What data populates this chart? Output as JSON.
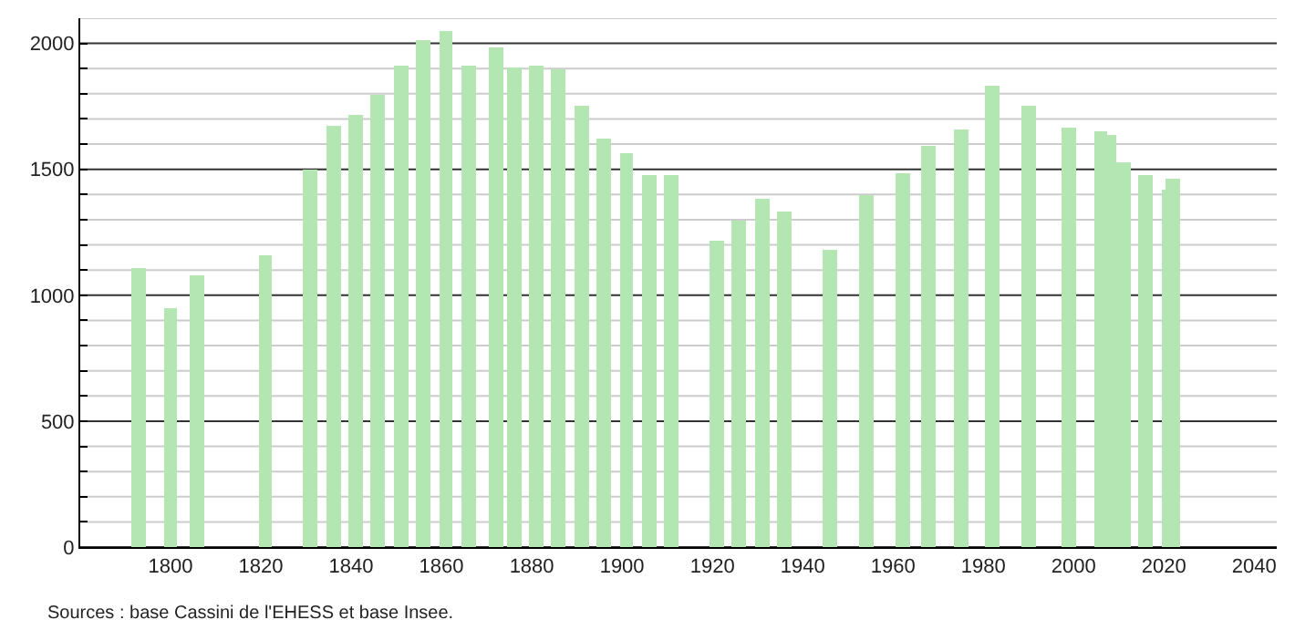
{
  "chart_data": {
    "type": "bar",
    "x": [
      1793,
      1800,
      1806,
      1821,
      1831,
      1836,
      1841,
      1846,
      1851,
      1856,
      1861,
      1866,
      1872,
      1876,
      1881,
      1886,
      1891,
      1896,
      1901,
      1906,
      1911,
      1921,
      1926,
      1931,
      1936,
      1946,
      1954,
      1962,
      1968,
      1975,
      1982,
      1990,
      1999,
      2006,
      2008,
      2011,
      2016,
      2021,
      2022
    ],
    "values": [
      1110,
      950,
      1080,
      1160,
      1500,
      1675,
      1715,
      1795,
      1910,
      2015,
      2050,
      1915,
      1985,
      1905,
      1910,
      1895,
      1755,
      1625,
      1565,
      1480,
      1480,
      1220,
      1295,
      1380,
      1330,
      1180,
      1400,
      1485,
      1595,
      1655,
      1835,
      1755,
      1665,
      1650,
      1640,
      1530,
      1480,
      1420,
      1460
    ],
    "color": "#b3e6b3",
    "xlim": [
      1780,
      2045
    ],
    "xticks": [
      1800,
      1820,
      1840,
      1860,
      1880,
      1900,
      1920,
      1940,
      1960,
      1980,
      2000,
      2020,
      2040
    ],
    "ylim": [
      0,
      2100
    ],
    "yticks": [
      0,
      {
        "value": 100,
        "label": null
      },
      {
        "value": 200,
        "label": null
      },
      {
        "value": 300,
        "label": null
      },
      {
        "value": 400,
        "label": null
      },
      500,
      {
        "value": 600,
        "label": null
      },
      {
        "value": 700,
        "label": null
      },
      {
        "value": 800,
        "label": null
      },
      {
        "value": 900,
        "label": null
      },
      1000,
      {
        "value": 1100,
        "label": null
      },
      {
        "value": 1200,
        "label": null
      },
      {
        "value": 1300,
        "label": null
      },
      {
        "value": 1400,
        "label": null
      },
      1500,
      {
        "value": 1600,
        "label": null
      },
      {
        "value": 1700,
        "label": null
      },
      {
        "value": 1800,
        "label": null
      },
      {
        "value": 1900,
        "label": null
      },
      2000,
      {
        "value": 2100,
        "label": null
      }
    ],
    "grid": "y",
    "annotations": [
      "Sources : base Cassini de l'EHESS et base Insee."
    ]
  }
}
